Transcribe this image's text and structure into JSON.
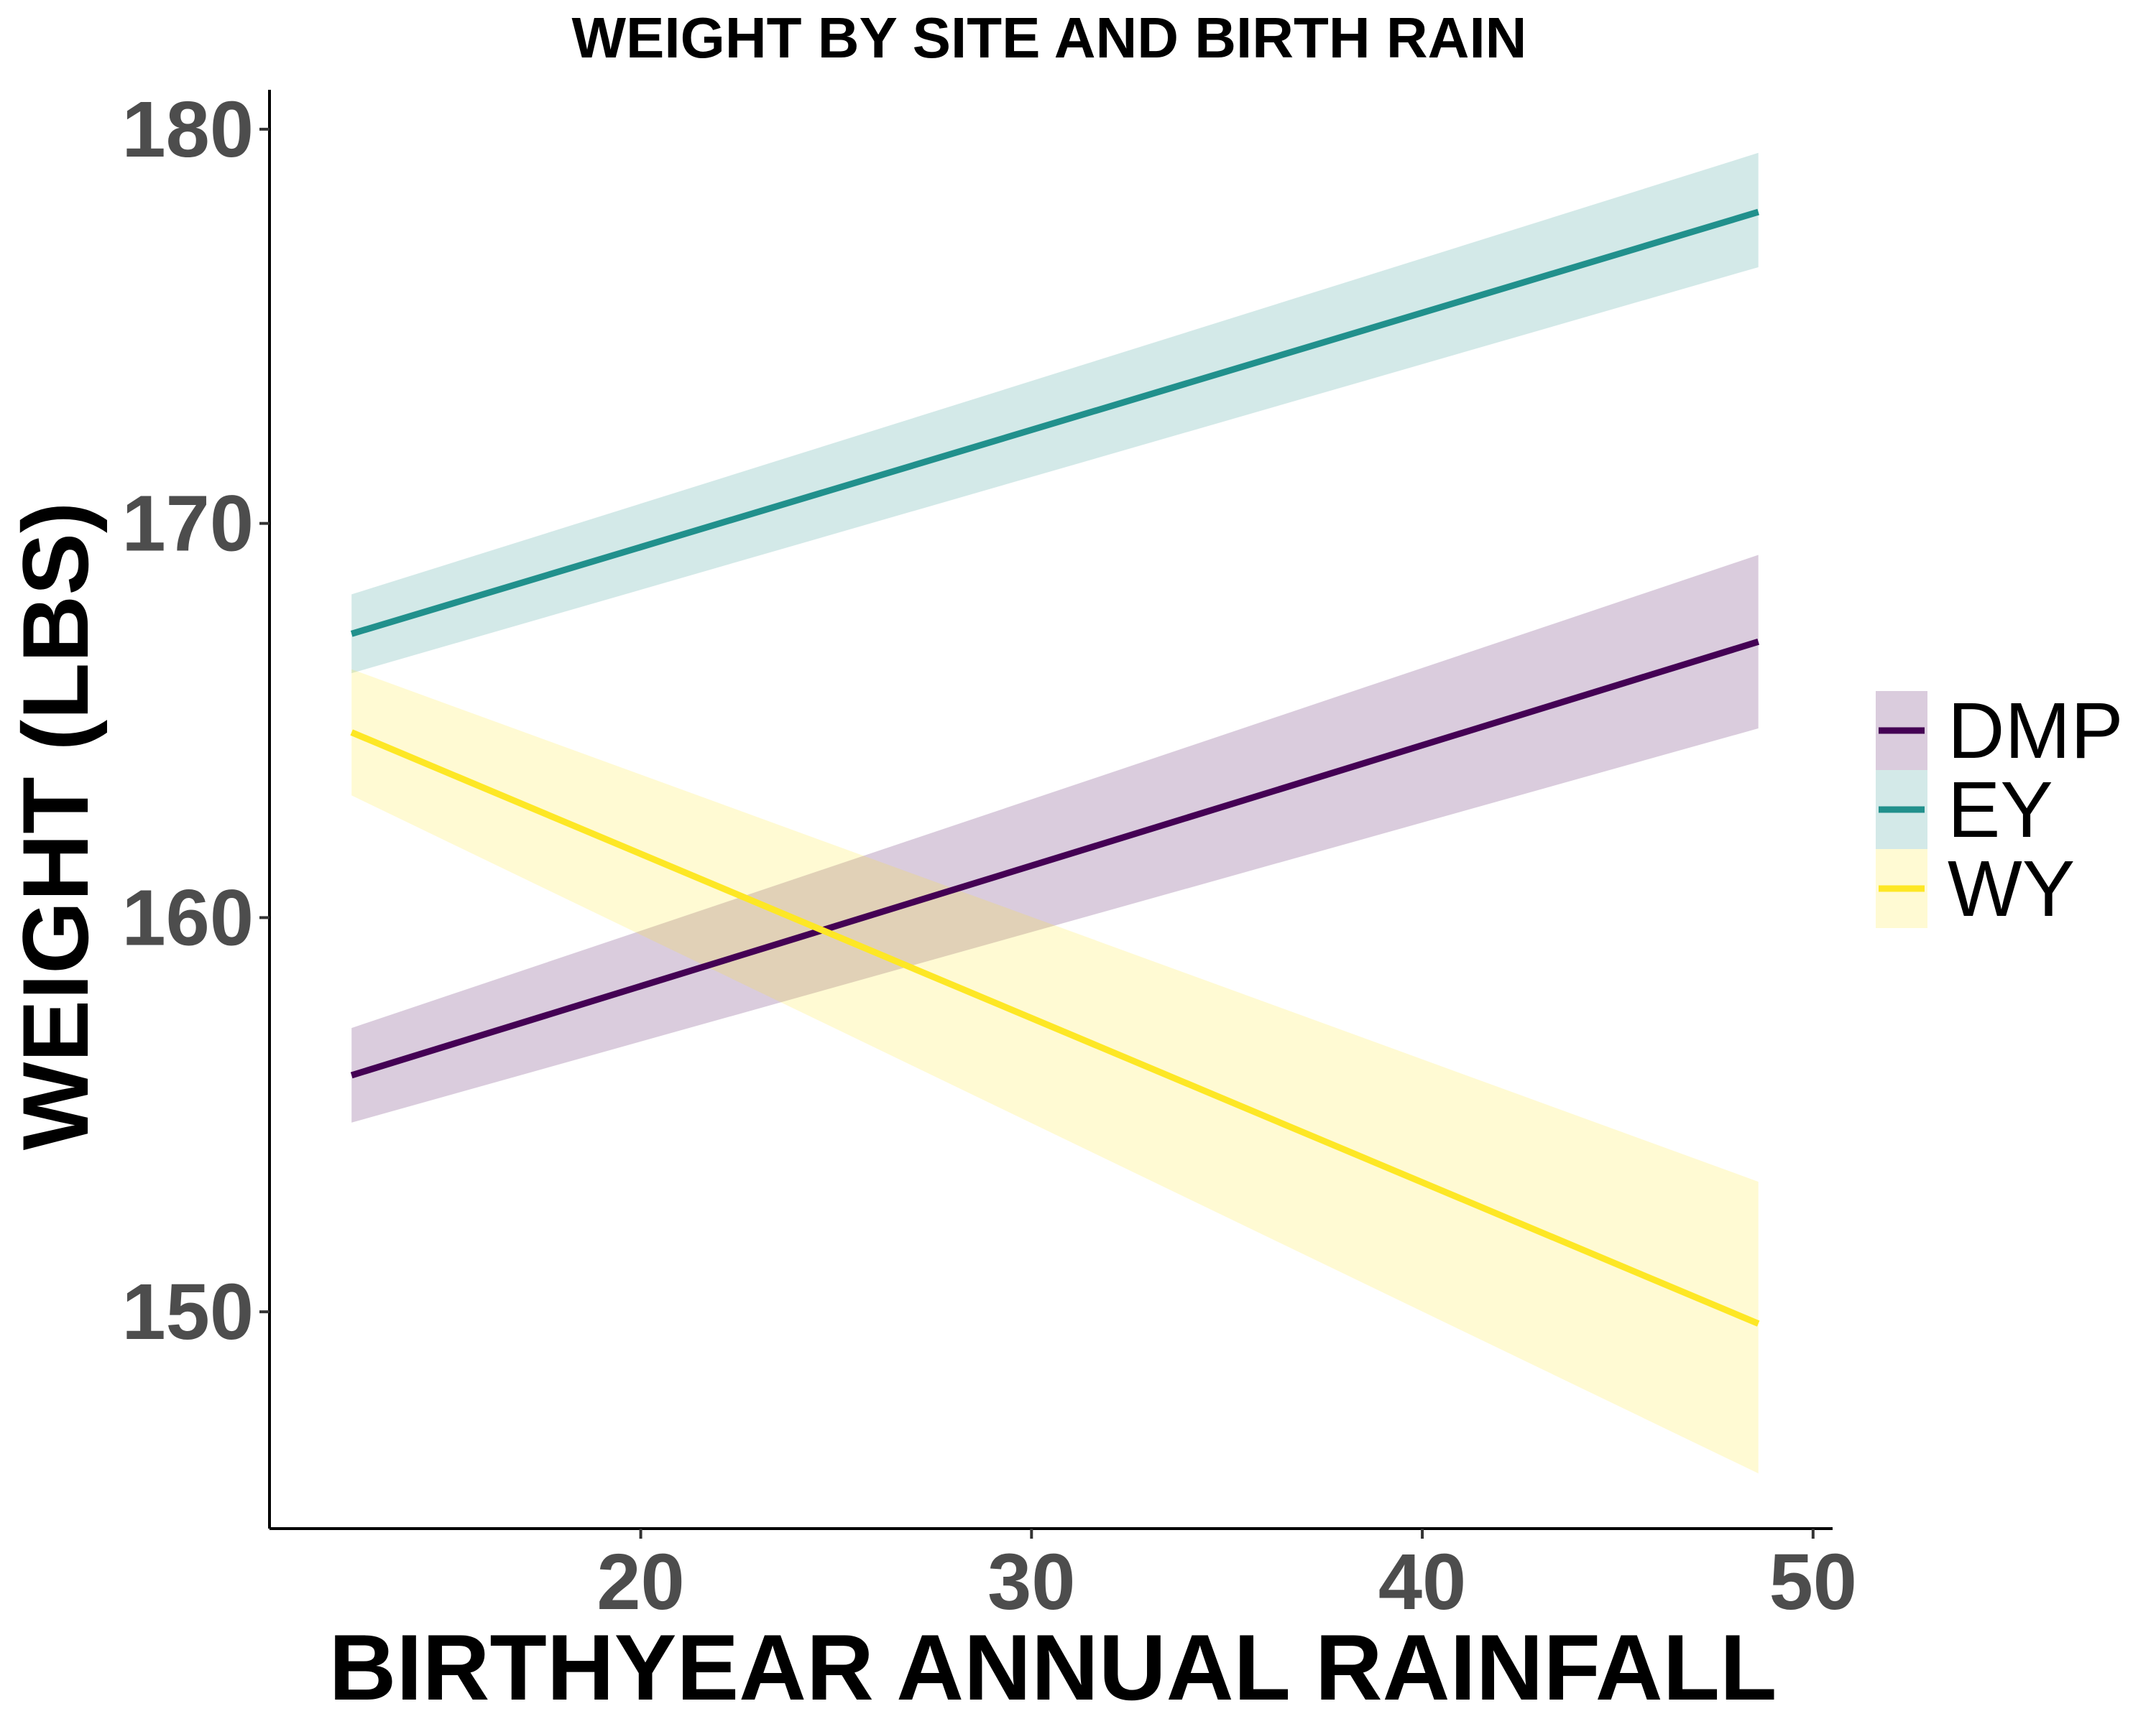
{
  "chart_data": {
    "type": "line",
    "title": "WEIGHT BY SITE AND BIRTH RAIN",
    "xlabel": "BIRTHYEAR ANNUAL RAINFALL",
    "ylabel": "WEIGHT (LBS)",
    "xlim": [
      10.5,
      50.5
    ],
    "ylim": [
      144.5,
      181
    ],
    "xticks": [
      20,
      30,
      40,
      50
    ],
    "yticks": [
      150,
      160,
      170,
      180
    ],
    "grid": false,
    "legend_position": "right",
    "series": [
      {
        "name": "DMP",
        "color": "#440154",
        "x": [
          12.6,
          48.6
        ],
        "y": [
          156.0,
          167.0
        ],
        "ci_lower": [
          154.8,
          164.8
        ],
        "ci_upper": [
          157.2,
          169.2
        ]
      },
      {
        "name": "EY",
        "color": "#21908C",
        "x": [
          12.6,
          48.6
        ],
        "y": [
          167.2,
          177.9
        ],
        "ci_lower": [
          166.2,
          176.5
        ],
        "ci_upper": [
          168.2,
          179.4
        ]
      },
      {
        "name": "WY",
        "color": "#FDE725",
        "x": [
          12.6,
          48.6
        ],
        "y": [
          164.7,
          149.7
        ],
        "ci_lower": [
          163.1,
          145.9
        ],
        "ci_upper": [
          166.3,
          153.3
        ]
      }
    ]
  }
}
